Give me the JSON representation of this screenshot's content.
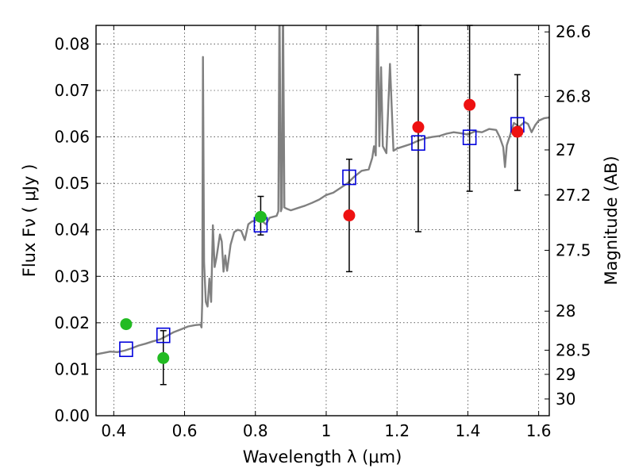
{
  "chart_data": {
    "type": "scatter",
    "xlabel": "Wavelength  λ (μm)",
    "ylabel": "Flux  Fν  ( μJy )",
    "ylabel_right": "Magnitude (AB)",
    "xlim": [
      0.35,
      1.63
    ],
    "ylim": [
      0.0,
      0.084
    ],
    "grid": true,
    "x_ticks": [
      0.4,
      0.6,
      0.8,
      1.0,
      1.2,
      1.4,
      1.6
    ],
    "x_tick_labels": [
      "0.4",
      "0.6",
      "0.8",
      "1",
      "1.2",
      "1.4",
      "1.6"
    ],
    "y_ticks": [
      0.0,
      0.01,
      0.02,
      0.03,
      0.04,
      0.05,
      0.06,
      0.07,
      0.08
    ],
    "y_tick_labels": [
      "0.00",
      "0.01",
      "0.02",
      "0.03",
      "0.04",
      "0.05",
      "0.06",
      "0.07",
      "0.08"
    ],
    "right_axis_ticks": [
      {
        "label": "26.6",
        "flux": 0.0826
      },
      {
        "label": "26.8",
        "flux": 0.0687
      },
      {
        "label": "27",
        "flux": 0.0572
      },
      {
        "label": "27.2",
        "flux": 0.0475
      },
      {
        "label": "27.5",
        "flux": 0.0356
      },
      {
        "label": "28",
        "flux": 0.0225
      },
      {
        "label": "28.5",
        "flux": 0.0141
      },
      {
        "label": "29",
        "flux": 0.0089
      },
      {
        "label": "30",
        "flux": 0.0036
      }
    ],
    "series": [
      {
        "kind": "observed_green",
        "color": "#22bb22",
        "points": [
          {
            "x": 0.435,
            "y": 0.0197,
            "err_low": null,
            "err_high": null
          },
          {
            "x": 0.54,
            "y": 0.0124,
            "err_low": 0.0067,
            "err_high": 0.0183
          },
          {
            "x": 0.815,
            "y": 0.0428,
            "err_low": 0.0389,
            "err_high": 0.0472
          }
        ]
      },
      {
        "kind": "observed_red",
        "color": "#ee1111",
        "points": [
          {
            "x": 1.065,
            "y": 0.0431,
            "err_low": 0.031,
            "err_high": 0.0552
          },
          {
            "x": 1.26,
            "y": 0.0621,
            "err_low": 0.0396,
            "err_high": 0.084
          },
          {
            "x": 1.405,
            "y": 0.0669,
            "err_low": 0.0483,
            "err_high": 0.084
          },
          {
            "x": 1.54,
            "y": 0.0611,
            "err_low": 0.0485,
            "err_high": 0.0734
          }
        ]
      },
      {
        "kind": "model_bands",
        "color": "#0000dd",
        "points": [
          {
            "x": 0.435,
            "y": 0.0143
          },
          {
            "x": 0.54,
            "y": 0.0173
          },
          {
            "x": 0.815,
            "y": 0.0411
          },
          {
            "x": 1.065,
            "y": 0.0513
          },
          {
            "x": 1.26,
            "y": 0.0587
          },
          {
            "x": 1.405,
            "y": 0.0599
          },
          {
            "x": 1.54,
            "y": 0.0626
          }
        ]
      },
      {
        "kind": "model_spectrum",
        "color": "#808080",
        "points": [
          [
            0.35,
            0.0132
          ],
          [
            0.37,
            0.0135
          ],
          [
            0.39,
            0.0138
          ],
          [
            0.41,
            0.0137
          ],
          [
            0.43,
            0.014
          ],
          [
            0.45,
            0.0145
          ],
          [
            0.47,
            0.0151
          ],
          [
            0.49,
            0.0155
          ],
          [
            0.51,
            0.016
          ],
          [
            0.53,
            0.0164
          ],
          [
            0.55,
            0.0172
          ],
          [
            0.57,
            0.018
          ],
          [
            0.59,
            0.0186
          ],
          [
            0.61,
            0.0192
          ],
          [
            0.63,
            0.0195
          ],
          [
            0.645,
            0.0196
          ],
          [
            0.648,
            0.019
          ],
          [
            0.65,
            0.0245
          ],
          [
            0.652,
            0.0772
          ],
          [
            0.655,
            0.033
          ],
          [
            0.66,
            0.0245
          ],
          [
            0.665,
            0.0235
          ],
          [
            0.67,
            0.0295
          ],
          [
            0.675,
            0.0245
          ],
          [
            0.68,
            0.041
          ],
          [
            0.685,
            0.032
          ],
          [
            0.69,
            0.034
          ],
          [
            0.695,
            0.0365
          ],
          [
            0.7,
            0.039
          ],
          [
            0.705,
            0.0375
          ],
          [
            0.71,
            0.031
          ],
          [
            0.715,
            0.0345
          ],
          [
            0.72,
            0.0312
          ],
          [
            0.73,
            0.0368
          ],
          [
            0.74,
            0.0395
          ],
          [
            0.75,
            0.04
          ],
          [
            0.76,
            0.0398
          ],
          [
            0.77,
            0.0378
          ],
          [
            0.78,
            0.0412
          ],
          [
            0.79,
            0.0418
          ],
          [
            0.8,
            0.042
          ],
          [
            0.81,
            0.0425
          ],
          [
            0.82,
            0.0418
          ],
          [
            0.83,
            0.0412
          ],
          [
            0.84,
            0.0426
          ],
          [
            0.85,
            0.0428
          ],
          [
            0.86,
            0.043
          ],
          [
            0.865,
            0.044
          ],
          [
            0.868,
            0.09
          ],
          [
            0.872,
            0.044
          ],
          [
            0.875,
            0.0448
          ],
          [
            0.878,
            0.09
          ],
          [
            0.882,
            0.0448
          ],
          [
            0.89,
            0.0445
          ],
          [
            0.9,
            0.0442
          ],
          [
            0.92,
            0.0447
          ],
          [
            0.94,
            0.0452
          ],
          [
            0.96,
            0.0458
          ],
          [
            0.98,
            0.0465
          ],
          [
            1.0,
            0.0475
          ],
          [
            1.02,
            0.048
          ],
          [
            1.04,
            0.049
          ],
          [
            1.06,
            0.05
          ],
          [
            1.08,
            0.0515
          ],
          [
            1.1,
            0.0527
          ],
          [
            1.12,
            0.053
          ],
          [
            1.13,
            0.0555
          ],
          [
            1.135,
            0.058
          ],
          [
            1.14,
            0.056
          ],
          [
            1.145,
            0.09
          ],
          [
            1.15,
            0.058
          ],
          [
            1.155,
            0.075
          ],
          [
            1.16,
            0.058
          ],
          [
            1.17,
            0.0565
          ],
          [
            1.18,
            0.0757
          ],
          [
            1.19,
            0.057
          ],
          [
            1.2,
            0.0575
          ],
          [
            1.22,
            0.058
          ],
          [
            1.24,
            0.0585
          ],
          [
            1.26,
            0.0592
          ],
          [
            1.28,
            0.0597
          ],
          [
            1.3,
            0.06
          ],
          [
            1.32,
            0.0602
          ],
          [
            1.34,
            0.0607
          ],
          [
            1.36,
            0.061
          ],
          [
            1.38,
            0.0608
          ],
          [
            1.4,
            0.0605
          ],
          [
            1.42,
            0.0612
          ],
          [
            1.44,
            0.061
          ],
          [
            1.46,
            0.0617
          ],
          [
            1.48,
            0.0615
          ],
          [
            1.49,
            0.06
          ],
          [
            1.5,
            0.0578
          ],
          [
            1.505,
            0.0535
          ],
          [
            1.51,
            0.0582
          ],
          [
            1.52,
            0.0605
          ],
          [
            1.53,
            0.063
          ],
          [
            1.545,
            0.0622
          ],
          [
            1.56,
            0.0632
          ],
          [
            1.57,
            0.0628
          ],
          [
            1.58,
            0.061
          ],
          [
            1.59,
            0.0625
          ],
          [
            1.6,
            0.0635
          ],
          [
            1.615,
            0.064
          ],
          [
            1.63,
            0.0642
          ]
        ]
      }
    ]
  }
}
